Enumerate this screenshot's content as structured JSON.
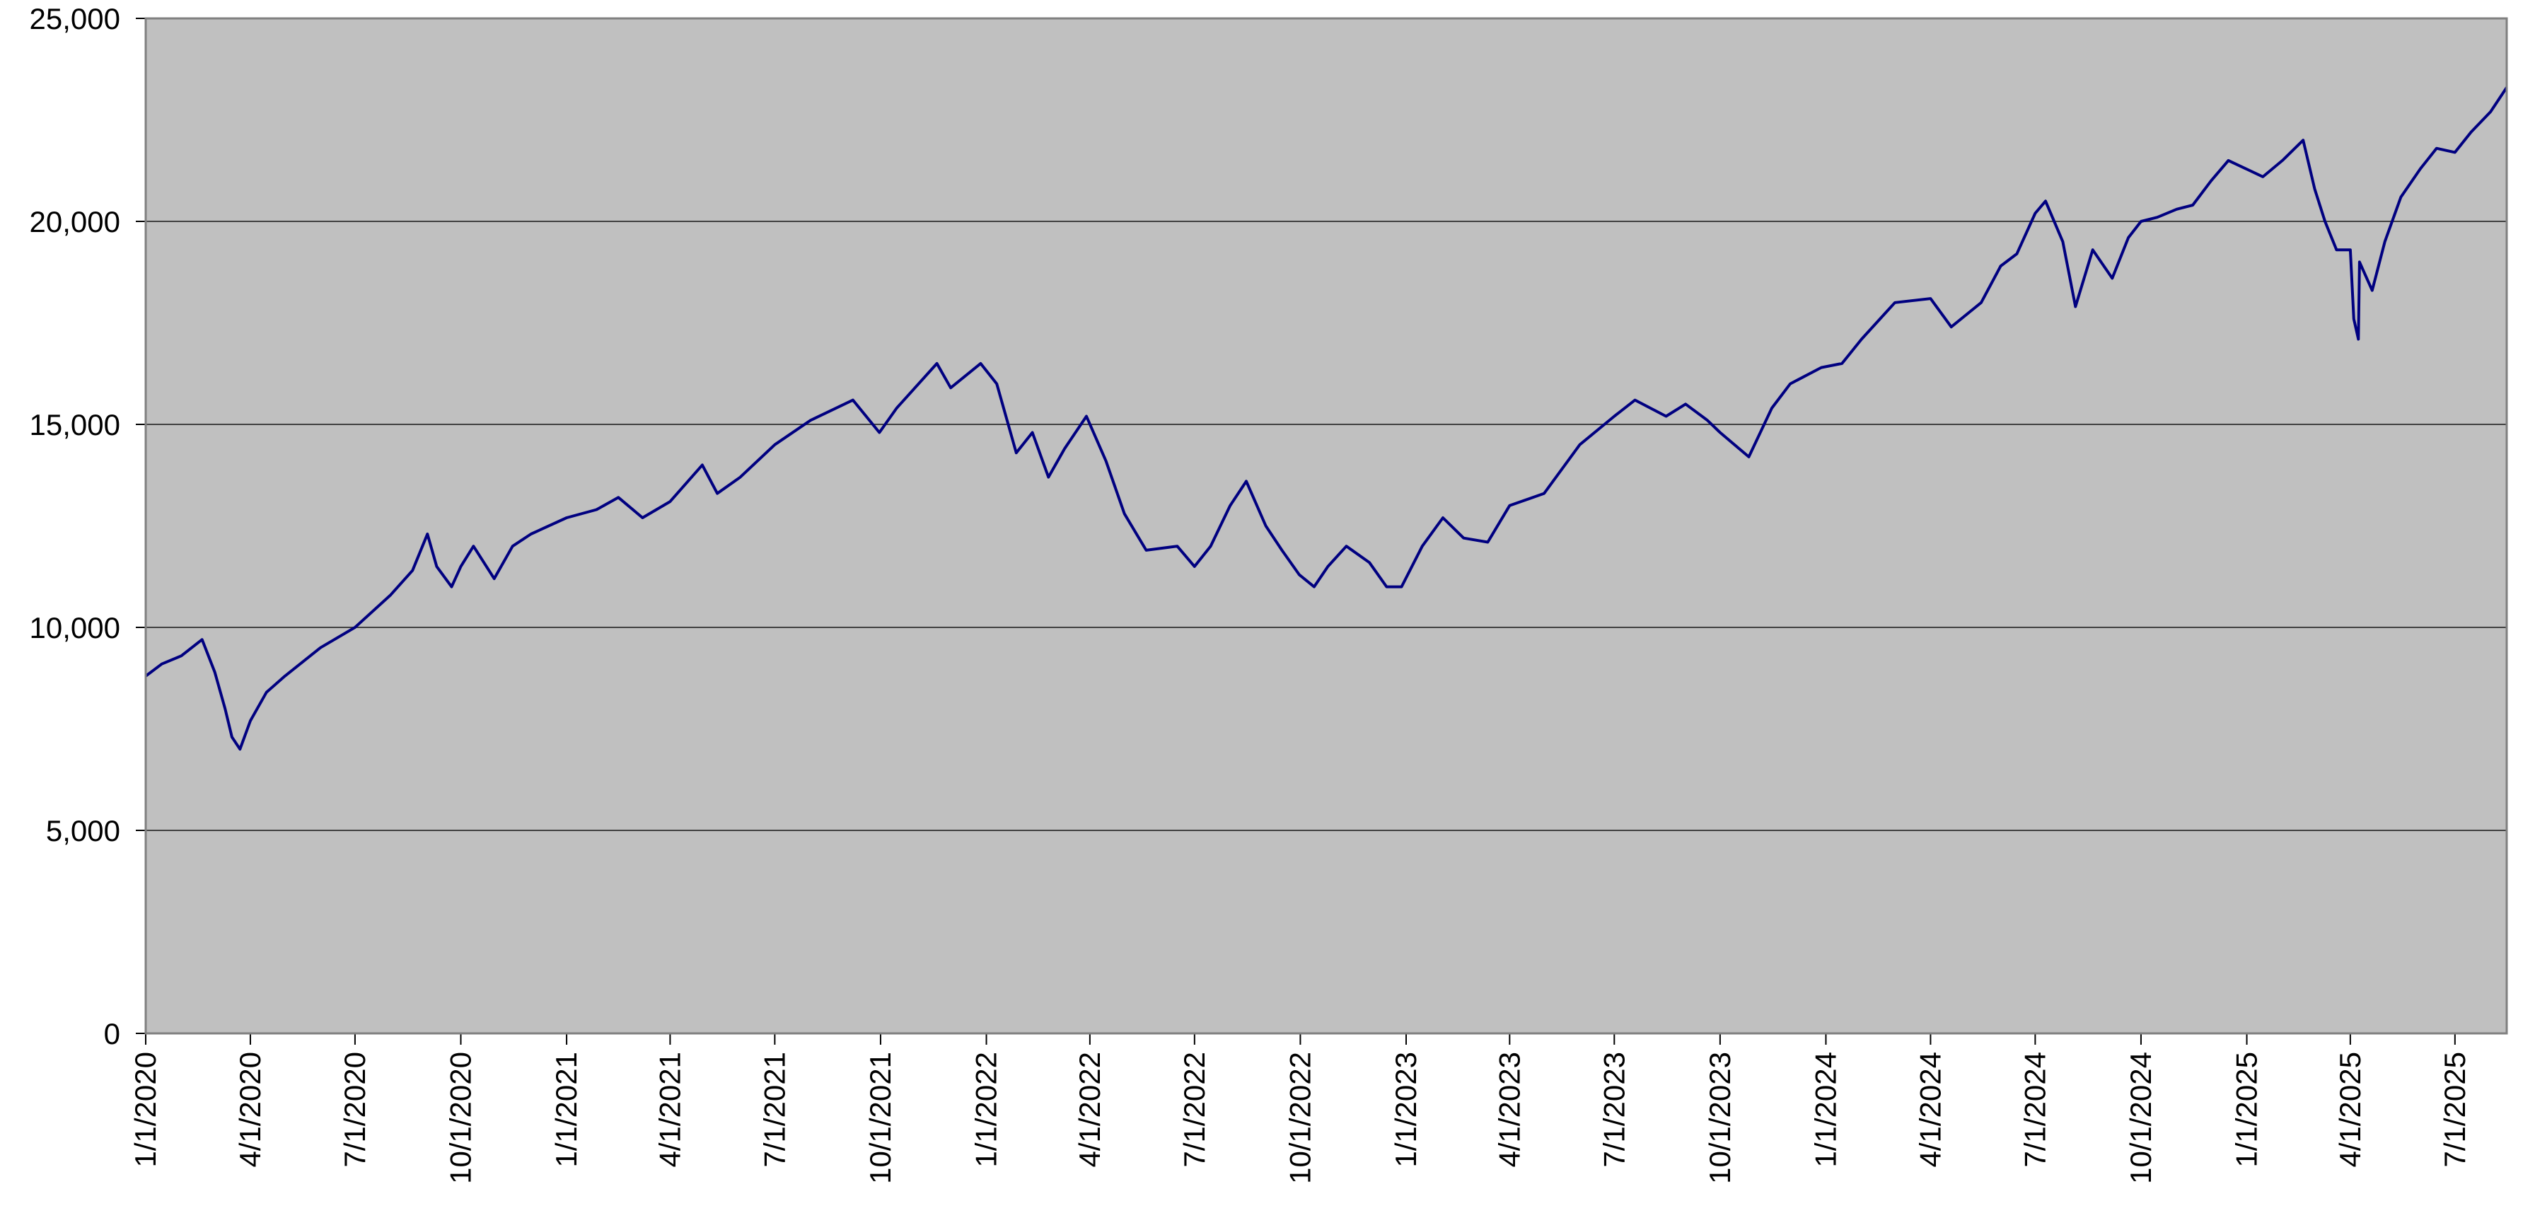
{
  "chart_data": {
    "type": "line",
    "title": "",
    "xlabel": "",
    "ylabel": "",
    "x_start": "1/1/2020",
    "x_end": "8/15/2025",
    "ylim": [
      0,
      25000
    ],
    "yticks": [
      0,
      5000,
      10000,
      15000,
      20000,
      25000
    ],
    "ytick_labels": [
      "0",
      "5,000",
      "10,000",
      "15,000",
      "20,000",
      "25,000"
    ],
    "xtick_labels": [
      "1/1/2020",
      "4/1/2020",
      "7/1/2020",
      "10/1/2020",
      "1/1/2021",
      "4/1/2021",
      "7/1/2021",
      "10/1/2021",
      "1/1/2022",
      "4/1/2022",
      "7/1/2022",
      "10/1/2022",
      "1/1/2023",
      "4/1/2023",
      "7/1/2023",
      "10/1/2023",
      "1/1/2024",
      "4/1/2024",
      "7/1/2024",
      "10/1/2024",
      "1/1/2025",
      "4/1/2025",
      "7/1/2025"
    ],
    "grid": true,
    "legend": "none",
    "plot_background": "#c0c0c0",
    "line_color": "#000080",
    "series": [
      {
        "x": [
          "1/1/2020",
          "1/15/2020",
          "2/1/2020",
          "2/19/2020",
          "3/1/2020",
          "3/10/2020",
          "3/16/2020",
          "3/23/2020",
          "4/1/2020",
          "4/15/2020",
          "5/1/2020",
          "6/1/2020",
          "7/1/2020",
          "8/1/2020",
          "8/20/2020",
          "9/2/2020",
          "9/10/2020",
          "9/23/2020",
          "10/1/2020",
          "10/12/2020",
          "10/30/2020",
          "11/15/2020",
          "12/1/2020",
          "1/1/2021",
          "1/27/2021",
          "2/15/2021",
          "3/8/2021",
          "4/1/2021",
          "4/29/2021",
          "5/12/2021",
          "6/1/2021",
          "7/1/2021",
          "8/1/2021",
          "9/7/2021",
          "9/30/2021",
          "10/15/2021",
          "11/19/2021",
          "12/1/2021",
          "12/27/2021",
          "1/10/2022",
          "1/27/2022",
          "2/10/2022",
          "2/24/2022",
          "3/10/2022",
          "3/29/2022",
          "4/15/2022",
          "5/1/2022",
          "5/20/2022",
          "6/16/2022",
          "7/1/2022",
          "7/15/2022",
          "8/1/2022",
          "8/15/2022",
          "9/1/2022",
          "9/15/2022",
          "9/30/2022",
          "10/13/2022",
          "10/25/2022",
          "11/10/2022",
          "11/30/2022",
          "12/15/2022",
          "12/28/2022",
          "1/15/2023",
          "2/2/2023",
          "2/20/2023",
          "3/13/2023",
          "4/1/2023",
          "5/1/2023",
          "6/1/2023",
          "7/1/2023",
          "7/19/2023",
          "8/15/2023",
          "9/1/2023",
          "9/20/2023",
          "10/1/2023",
          "10/26/2023",
          "11/15/2023",
          "12/1/2023",
          "12/28/2023",
          "1/15/2024",
          "2/1/2024",
          "3/1/2024",
          "4/1/2024",
          "4/19/2024",
          "5/15/2024",
          "6/1/2024",
          "6/15/2024",
          "7/1/2024",
          "7/10/2024",
          "7/25/2024",
          "8/5/2024",
          "8/20/2024",
          "9/6/2024",
          "9/20/2024",
          "10/1/2024",
          "10/15/2024",
          "11/1/2024",
          "11/15/2024",
          "12/1/2024",
          "12/16/2024",
          "12/31/2024",
          "1/15/2025",
          "2/1/2025",
          "2/19/2025",
          "3/1/2025",
          "3/10/2025",
          "3/20/2025",
          "4/1/2025",
          "4/4/2025",
          "4/8/2025",
          "4/9/2025",
          "4/20/2025",
          "5/1/2025",
          "5/15/2025",
          "6/1/2025",
          "6/15/2025",
          "7/1/2025",
          "7/15/2025",
          "8/1/2025",
          "8/15/2025"
        ],
        "y": [
          8800,
          9100,
          9300,
          9700,
          8900,
          8000,
          7300,
          7000,
          7700,
          8400,
          8800,
          9500,
          10000,
          10800,
          11400,
          12300,
          11500,
          11000,
          11500,
          12000,
          11200,
          12000,
          12300,
          12700,
          12900,
          13200,
          12700,
          13100,
          14000,
          13300,
          13700,
          14500,
          15100,
          15600,
          14800,
          15400,
          16500,
          15900,
          16500,
          16000,
          14300,
          14800,
          13700,
          14400,
          15200,
          14100,
          12800,
          11900,
          12000,
          11500,
          12000,
          13000,
          13600,
          12500,
          11900,
          11300,
          11000,
          11500,
          12000,
          11600,
          11000,
          11000,
          12000,
          12700,
          12200,
          12100,
          13000,
          13300,
          14500,
          15200,
          15600,
          15200,
          15500,
          15100,
          14800,
          14200,
          15400,
          16000,
          16400,
          16500,
          17100,
          18000,
          18100,
          17400,
          18000,
          18900,
          19200,
          20200,
          20500,
          19500,
          17900,
          19300,
          18600,
          19600,
          20000,
          20100,
          20300,
          20400,
          21000,
          21500,
          21300,
          21100,
          21500,
          22000,
          20800,
          20000,
          19300,
          19300,
          17600,
          17100,
          19000,
          18300,
          19500,
          20600,
          21300,
          21800,
          21700,
          22200,
          22700,
          23300
        ]
      }
    ]
  }
}
